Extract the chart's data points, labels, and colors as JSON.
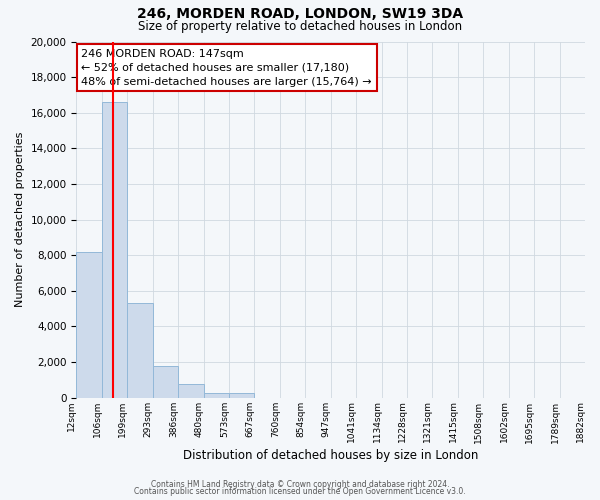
{
  "title": "246, MORDEN ROAD, LONDON, SW19 3DA",
  "subtitle": "Size of property relative to detached houses in London",
  "xlabel": "Distribution of detached houses by size in London",
  "ylabel": "Number of detached properties",
  "bin_labels": [
    "12sqm",
    "106sqm",
    "199sqm",
    "293sqm",
    "386sqm",
    "480sqm",
    "573sqm",
    "667sqm",
    "760sqm",
    "854sqm",
    "947sqm",
    "1041sqm",
    "1134sqm",
    "1228sqm",
    "1321sqm",
    "1415sqm",
    "1508sqm",
    "1602sqm",
    "1695sqm",
    "1789sqm",
    "1882sqm"
  ],
  "bar_values": [
    8200,
    16600,
    5300,
    1800,
    750,
    280,
    280,
    0,
    0,
    0,
    0,
    0,
    0,
    0,
    0,
    0,
    0,
    0,
    0,
    0
  ],
  "bar_color": "#cddaeb",
  "bar_edgecolor": "#93b8d8",
  "red_line_x": 1.42,
  "annotation_title": "246 MORDEN ROAD: 147sqm",
  "annotation_line1": "← 52% of detached houses are smaller (17,180)",
  "annotation_line2": "48% of semi-detached houses are larger (15,764) →",
  "annotation_box_facecolor": "#ffffff",
  "annotation_box_edgecolor": "#cc0000",
  "ylim": [
    0,
    20000
  ],
  "yticks": [
    0,
    2000,
    4000,
    6000,
    8000,
    10000,
    12000,
    14000,
    16000,
    18000,
    20000
  ],
  "footer1": "Contains HM Land Registry data © Crown copyright and database right 2024.",
  "footer2": "Contains public sector information licensed under the Open Government Licence v3.0.",
  "grid_color": "#d0d8e0",
  "background_color": "#f4f7fa",
  "plot_bg_color": "#f4f7fa"
}
